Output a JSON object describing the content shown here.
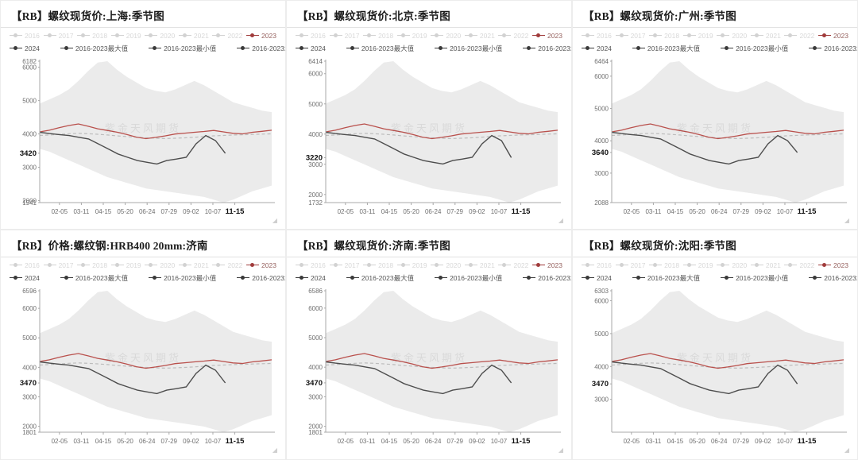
{
  "watermark": "紫金天风期货",
  "legend": {
    "inactive_years": [
      "2016",
      "2017",
      "2018",
      "2019",
      "2020",
      "2021",
      "2022"
    ],
    "active_year": "2023",
    "series_items": [
      "2024",
      "2016-2023最大值",
      "2016-2023最小值",
      "2016-2023均值"
    ]
  },
  "colors": {
    "line_2023": "#b9504c",
    "line_2024": "#4d4d4d",
    "mean_line": "#bcbcbc",
    "band_fill": "#e7e7e7",
    "axis_line": "#a8a8a8",
    "axis_text": "#6f6f6f",
    "bold_text": "#111111"
  },
  "chart_data": {
    "type": "line",
    "x_labels": [
      "02-05",
      "03-11",
      "04-15",
      "05-20",
      "06-24",
      "07-29",
      "09-02",
      "10-07",
      "11-15"
    ],
    "bold_x_label": "11-15",
    "legend_position": "top",
    "grid": false,
    "normalized": {
      "band_top": [
        0.7,
        0.73,
        0.76,
        0.8,
        0.86,
        0.93,
        0.99,
        1.0,
        0.94,
        0.89,
        0.85,
        0.81,
        0.79,
        0.78,
        0.8,
        0.83,
        0.86,
        0.83,
        0.79,
        0.75,
        0.71,
        0.69,
        0.67,
        0.65,
        0.64
      ],
      "band_bottom": [
        0.38,
        0.36,
        0.33,
        0.3,
        0.27,
        0.24,
        0.21,
        0.18,
        0.16,
        0.14,
        0.12,
        0.1,
        0.09,
        0.08,
        0.07,
        0.06,
        0.05,
        0.04,
        0.02,
        0.0,
        0.02,
        0.05,
        0.08,
        0.1,
        0.12
      ],
      "mean": [
        0.475,
        0.478,
        0.482,
        0.487,
        0.49,
        0.487,
        0.483,
        0.478,
        0.472,
        0.467,
        0.462,
        0.458,
        0.455,
        0.453,
        0.455,
        0.458,
        0.462,
        0.467,
        0.472,
        0.475,
        0.478,
        0.48,
        0.482,
        0.484,
        0.486
      ],
      "y2023": [
        0.5,
        0.512,
        0.53,
        0.545,
        0.556,
        0.54,
        0.522,
        0.51,
        0.498,
        0.482,
        0.463,
        0.452,
        0.461,
        0.472,
        0.485,
        0.491,
        0.497,
        0.503,
        0.51,
        0.5,
        0.49,
        0.486,
        0.497,
        0.504,
        0.512
      ],
      "y2024": [
        0.497,
        0.488,
        0.481,
        0.474,
        0.462,
        0.45,
        0.415,
        0.38,
        0.344,
        0.32,
        0.297,
        0.285,
        0.273,
        0.297,
        0.308,
        0.32,
        0.415,
        0.474,
        0.438
      ],
      "y2024_x_extent": 0.8
    },
    "charts": [
      {
        "title": "【RB】螺纹现货价:上海:季节图",
        "ylim": [
          1941,
          6182
        ],
        "yticks": [
          6000,
          5000,
          4000,
          3000,
          2000
        ],
        "ymax_label": "6182",
        "ymin_label": "1941",
        "current_value": 3420
      },
      {
        "title": "【RB】螺纹现货价:北京:季节图",
        "ylim": [
          1732,
          6414
        ],
        "yticks": [
          6000,
          5000,
          4000,
          3000,
          2000
        ],
        "ymax_label": "6414",
        "ymin_label": "1732",
        "current_value": 3220
      },
      {
        "title": "【RB】螺纹现货价:广州:季节图",
        "ylim": [
          2088,
          6464
        ],
        "yticks": [
          6000,
          5000,
          4000,
          3000
        ],
        "ymax_label": "6464",
        "ymin_label": "2088",
        "current_value": 3640
      },
      {
        "title": "【RB】价格:螺纹钢:HRB400 20mm:济南",
        "ylim": [
          1801,
          6596
        ],
        "yticks": [
          6000,
          5000,
          4000,
          3000,
          2000
        ],
        "ymax_label": "6596",
        "ymin_label": "1801",
        "current_value": 3470
      },
      {
        "title": "【RB】螺纹现货价:济南:季节图",
        "ylim": [
          1801,
          6586
        ],
        "yticks": [
          6000,
          5000,
          4000,
          3000,
          2000
        ],
        "ymax_label": "6586",
        "ymin_label": "1801",
        "current_value": 3470
      },
      {
        "title": "【RB】螺纹现货价:沈阳:季节图",
        "ylim": [
          2000,
          6303
        ],
        "yticks": [
          6000,
          5000,
          4000,
          3000,
          2000
        ],
        "ymax_label": "6303",
        "ymin_label": "",
        "current_value": 3470
      }
    ]
  }
}
